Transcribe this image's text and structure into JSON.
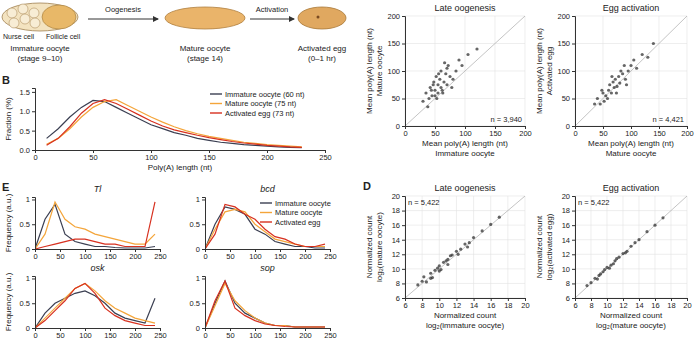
{
  "diagram": {
    "stages": [
      {
        "name": "Immature oocyte",
        "detail": "(stage 9–10)"
      },
      {
        "name": "Mature oocyte",
        "detail": "(stage 14)"
      },
      {
        "name": "Activated egg",
        "detail": "(0–1 hr)"
      }
    ],
    "transitions": [
      "Oogenesis",
      "Activation"
    ],
    "cell_labels": [
      "Nurse cell",
      "Follicle cell"
    ]
  },
  "chart_data": [
    {
      "type": "line",
      "panel": "B",
      "xlabel": "Poly(A) length (nt)",
      "ylabel": "Fraction (%)",
      "x": [
        10,
        20,
        30,
        40,
        50,
        60,
        70,
        80,
        90,
        100,
        110,
        120,
        130,
        140,
        150,
        160,
        170,
        180,
        190,
        200,
        210,
        220,
        230
      ],
      "series": [
        {
          "name": "Immature oocyte (60 nt)",
          "color": "#3b3f52",
          "values": [
            0.3,
            0.55,
            0.85,
            1.1,
            1.28,
            1.25,
            1.1,
            0.95,
            0.8,
            0.65,
            0.55,
            0.45,
            0.38,
            0.3,
            0.25,
            0.2,
            0.17,
            0.14,
            0.12,
            0.1,
            0.08,
            0.07,
            0.06
          ]
        },
        {
          "name": "Mature oocyte (75 nt)",
          "color": "#f4a53a",
          "values": [
            0.15,
            0.3,
            0.55,
            0.85,
            1.1,
            1.25,
            1.3,
            1.15,
            1.0,
            0.85,
            0.72,
            0.6,
            0.5,
            0.42,
            0.35,
            0.3,
            0.25,
            0.2,
            0.17,
            0.14,
            0.12,
            0.1,
            0.08
          ]
        },
        {
          "name": "Activated egg (73 nt)",
          "color": "#d7301f",
          "values": [
            0.12,
            0.3,
            0.6,
            0.95,
            1.2,
            1.3,
            1.2,
            1.05,
            0.9,
            0.75,
            0.62,
            0.52,
            0.45,
            0.38,
            0.32,
            0.27,
            0.22,
            0.18,
            0.15,
            0.12,
            0.1,
            0.08,
            0.07
          ]
        }
      ],
      "xlim": [
        0,
        250
      ],
      "xticks": [
        0,
        50,
        100,
        150,
        200,
        250
      ],
      "ylim": [
        0,
        1.6
      ],
      "yticks": [
        {
          "value": 0,
          "label": "0.0"
        },
        0.5,
        {
          "value": 1,
          "label": "1.0"
        },
        1.5
      ],
      "legend": "top-right"
    },
    {
      "type": "line",
      "panel": "E",
      "title": "Tl",
      "ylabel": "Frequency (a.u.)",
      "x": [
        0,
        20,
        40,
        60,
        80,
        100,
        120,
        140,
        160,
        180,
        200,
        220,
        240
      ],
      "series": [
        {
          "name": "Immature oocyte",
          "color": "#3b3f52",
          "values": [
            0,
            0.6,
            0.9,
            0.3,
            0.15,
            0.1,
            0.05,
            0.05,
            0.03,
            0.02,
            0.02,
            0.02,
            0.05
          ]
        },
        {
          "name": "Mature oocyte",
          "color": "#f4a53a",
          "values": [
            0,
            0.3,
            0.95,
            0.6,
            0.45,
            0.4,
            0.3,
            0.25,
            0.2,
            0.15,
            0.1,
            0.1,
            0.3
          ]
        },
        {
          "name": "Activated egg",
          "color": "#d7301f",
          "values": [
            0,
            0.05,
            0.1,
            0.15,
            0.2,
            0.2,
            0.15,
            0.1,
            0.1,
            0.05,
            0.05,
            0.05,
            0.95
          ]
        }
      ],
      "xlim": [
        0,
        250
      ],
      "xticks": [
        0,
        50,
        100,
        150,
        200,
        250
      ],
      "ylim": [
        0,
        1.05
      ],
      "yticks": [
        0,
        0.5,
        1
      ]
    },
    {
      "type": "line",
      "title": "bcd",
      "x": [
        0,
        20,
        40,
        60,
        80,
        100,
        120,
        140,
        160,
        180,
        200,
        220,
        240
      ],
      "series": [
        {
          "name": "Immature oocyte",
          "color": "#3b3f52",
          "values": [
            0,
            0.5,
            0.85,
            0.8,
            0.7,
            0.4,
            0.3,
            0.15,
            0.1,
            0.05,
            0.05,
            0.02,
            0.02
          ]
        },
        {
          "name": "Mature oocyte",
          "color": "#f4a53a",
          "values": [
            0,
            0.4,
            0.75,
            0.8,
            0.75,
            0.5,
            0.35,
            0.2,
            0.15,
            0.1,
            0.05,
            0.05,
            0.05
          ]
        },
        {
          "name": "Activated egg",
          "color": "#d7301f",
          "values": [
            0,
            0.3,
            0.9,
            0.85,
            0.7,
            0.6,
            0.4,
            0.25,
            0.2,
            0.1,
            0.05,
            0.05,
            0.1
          ]
        }
      ],
      "xlim": [
        0,
        250
      ],
      "xticks": [
        0,
        50,
        100,
        150,
        200,
        250
      ],
      "ylim": [
        0,
        1.05
      ],
      "yticks": [
        0,
        0.5,
        1
      ],
      "legend": "top-right"
    },
    {
      "type": "line",
      "title": "osk",
      "ylabel": "Frequency (a.u.)",
      "x": [
        0,
        20,
        40,
        60,
        80,
        100,
        120,
        140,
        160,
        180,
        200,
        220,
        240
      ],
      "series": [
        {
          "name": "Immature oocyte",
          "color": "#3b3f52",
          "values": [
            0,
            0.3,
            0.5,
            0.6,
            0.7,
            0.75,
            0.65,
            0.5,
            0.3,
            0.2,
            0.15,
            0.1,
            0.6
          ]
        },
        {
          "name": "Mature oocyte",
          "color": "#f4a53a",
          "values": [
            0,
            0.2,
            0.4,
            0.6,
            0.8,
            0.9,
            0.75,
            0.55,
            0.4,
            0.3,
            0.2,
            0.15,
            0.1
          ]
        },
        {
          "name": "Activated egg",
          "color": "#d7301f",
          "values": [
            0,
            0.15,
            0.35,
            0.55,
            0.8,
            0.9,
            0.7,
            0.4,
            0.25,
            0.15,
            0.1,
            0.05,
            0.05
          ]
        }
      ],
      "xlim": [
        0,
        250
      ],
      "xticks": [
        0,
        50,
        100,
        150,
        200,
        250
      ],
      "ylim": [
        0,
        1.05
      ],
      "yticks": [
        0,
        0.5,
        1
      ]
    },
    {
      "type": "line",
      "title": "sop",
      "x": [
        0,
        20,
        40,
        60,
        80,
        100,
        120,
        140,
        160,
        180,
        200,
        220,
        240
      ],
      "series": [
        {
          "name": "Immature oocyte",
          "color": "#3b3f52",
          "values": [
            0,
            0.5,
            0.95,
            0.5,
            0.3,
            0.2,
            0.1,
            0.05,
            0.05,
            0.02,
            0.02,
            0.02,
            0.02
          ]
        },
        {
          "name": "Mature oocyte",
          "color": "#f4a53a",
          "values": [
            0,
            0.45,
            0.9,
            0.55,
            0.35,
            0.2,
            0.1,
            0.05,
            0.05,
            0.02,
            0.02,
            0.02,
            0.02
          ]
        },
        {
          "name": "Activated egg",
          "color": "#d7301f",
          "values": [
            0,
            0.55,
            0.95,
            0.4,
            0.25,
            0.15,
            0.08,
            0.05,
            0.03,
            0.02,
            0.02,
            0.02,
            0.02
          ]
        }
      ],
      "xlim": [
        0,
        250
      ],
      "xticks": [
        0,
        50,
        100,
        150,
        200,
        250
      ],
      "ylim": [
        0,
        1.05
      ],
      "yticks": [
        0,
        0.5,
        1
      ]
    },
    {
      "type": "scatter",
      "title": "Late oogenesis",
      "xlabel": [
        "Mean poly(A) length (nt)",
        "Immature oocyte"
      ],
      "ylabel": [
        "Mean poly(A) length (nt)",
        "Mature oocyte"
      ],
      "annotation": "n = 3,940",
      "color": "#333333",
      "x": [
        30,
        35,
        40,
        42,
        45,
        48,
        50,
        52,
        55,
        55,
        58,
        60,
        60,
        62,
        65,
        68,
        70,
        72,
        75,
        80,
        85,
        90,
        38,
        44,
        50,
        56,
        63,
        70,
        78,
        95,
        105,
        120,
        47,
        53,
        66
      ],
      "values": [
        45,
        60,
        50,
        70,
        55,
        80,
        65,
        90,
        60,
        75,
        85,
        70,
        100,
        65,
        80,
        95,
        75,
        110,
        90,
        85,
        100,
        120,
        35,
        65,
        55,
        95,
        60,
        105,
        70,
        110,
        130,
        140,
        75,
        50,
        115
      ],
      "xlim": [
        0,
        200
      ],
      "xticks": [
        0,
        50,
        100,
        150,
        200
      ],
      "ylim": [
        0,
        200
      ],
      "yticks": [
        0,
        50,
        100,
        150,
        200
      ],
      "grid": true
    },
    {
      "type": "scatter",
      "title": "Egg activation",
      "xlabel": [
        "Mean poly(A) length (nt)",
        "Mature oocyte"
      ],
      "ylabel": [
        "Mean poly(A) length (nt)",
        "Activated egg"
      ],
      "annotation": "n = 4,421",
      "color": "#333333",
      "x": [
        35,
        40,
        45,
        50,
        55,
        60,
        62,
        65,
        68,
        70,
        72,
        75,
        78,
        80,
        85,
        90,
        95,
        100,
        110,
        120,
        48,
        58,
        66,
        74,
        82,
        92,
        105,
        130,
        140,
        52,
        88
      ],
      "values": [
        40,
        50,
        40,
        60,
        55,
        65,
        75,
        60,
        80,
        70,
        85,
        72,
        90,
        78,
        95,
        85,
        100,
        110,
        105,
        130,
        65,
        50,
        90,
        60,
        100,
        75,
        120,
        125,
        150,
        45,
        110
      ],
      "xlim": [
        0,
        200
      ],
      "xticks": [
        0,
        50,
        100,
        150,
        200
      ],
      "ylim": [
        0,
        200
      ],
      "yticks": [
        0,
        50,
        100,
        150,
        200
      ],
      "grid": true
    },
    {
      "type": "scatter",
      "panel": "D",
      "title": "Late oogenesis",
      "xlabel": [
        "Normalized count",
        "log₂(immature oocyte)"
      ],
      "ylabel": [
        "Normalized count",
        "log₂(mature oocyte)"
      ],
      "annotation": "n = 5,422",
      "color": "#333333",
      "x": [
        7.5,
        8,
        8.5,
        9,
        9,
        9.5,
        10,
        10,
        10.5,
        11,
        11,
        11.5,
        12,
        12.5,
        13,
        13.5,
        14,
        15,
        16,
        17,
        8.2,
        9.2,
        10.2,
        11.3,
        12.2,
        13.3,
        9.8,
        10.8
      ],
      "values": [
        7.8,
        8.3,
        8.2,
        9.4,
        8.7,
        9.8,
        10.4,
        9.7,
        10.9,
        11.3,
        10.6,
        11.9,
        12.4,
        12.7,
        13.4,
        13.6,
        14.3,
        15.2,
        16.1,
        17.1,
        8.9,
        8.8,
        9.9,
        11.8,
        12.0,
        13.0,
        10.1,
        11.1
      ],
      "xlim": [
        6,
        20
      ],
      "xticks": [
        6,
        8,
        10,
        12,
        14,
        16,
        18,
        20
      ],
      "ylim": [
        6,
        20
      ],
      "yticks": [
        6,
        8,
        10,
        12,
        14,
        16,
        18,
        20
      ],
      "grid": true
    },
    {
      "type": "scatter",
      "title": "Egg activation",
      "xlabel": [
        "Normalized count",
        "log₂(mature oocyte)"
      ],
      "ylabel": [
        "Normalized count",
        "log₂(activated egg)"
      ],
      "annotation": "n = 5,422",
      "color": "#333333",
      "x": [
        7.5,
        8,
        8.5,
        9,
        9.5,
        10,
        10.5,
        11,
        11.5,
        12,
        12.5,
        13,
        14,
        15,
        16,
        17,
        8.8,
        9.7,
        10.3,
        11.2,
        12.3,
        13.5,
        9.2,
        10.8
      ],
      "values": [
        7.7,
        8.1,
        8.7,
        9.1,
        9.6,
        10.2,
        10.5,
        11.1,
        11.6,
        12.1,
        12.4,
        13.1,
        14.0,
        15.1,
        16.0,
        17.0,
        8.6,
        9.9,
        10.1,
        11.4,
        12.2,
        13.6,
        9.3,
        10.7
      ],
      "xlim": [
        6,
        20
      ],
      "xticks": [
        6,
        8,
        10,
        12,
        14,
        16,
        18,
        20
      ],
      "ylim": [
        6,
        20
      ],
      "yticks": [
        6,
        8,
        10,
        12,
        14,
        16,
        18,
        20
      ],
      "grid": true
    }
  ]
}
